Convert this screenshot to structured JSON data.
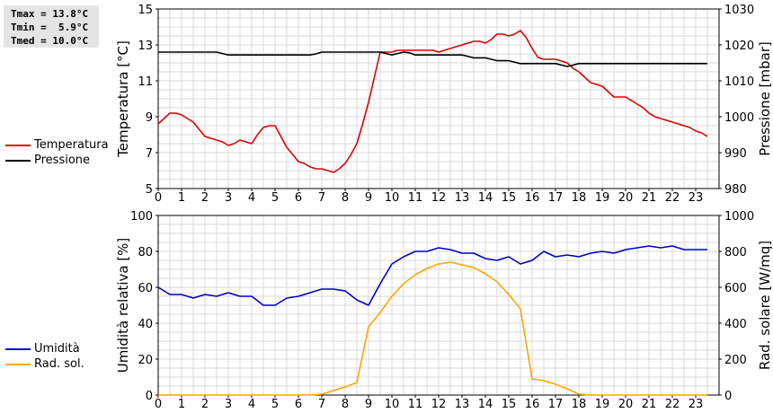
{
  "stats": {
    "tmax": "Tmax = 13.8°C",
    "tmin": "Tmin =  5.9°C",
    "tmed": "Tmed = 10.0°C"
  },
  "chart_data": [
    {
      "type": "line",
      "ylabel_left": "Temperatura [°C]",
      "ylabel_right": "Pressione [mbar]",
      "xlim": [
        0,
        24
      ],
      "xticks": [
        "0",
        "1",
        "2",
        "3",
        "4",
        "5",
        "6",
        "7",
        "8",
        "9",
        "10",
        "11",
        "12",
        "13",
        "14",
        "15",
        "16",
        "17",
        "18",
        "19",
        "20",
        "21",
        "22",
        "23"
      ],
      "ylim_left": [
        5,
        15
      ],
      "yticks_left": [
        "5",
        "7",
        "9",
        "11",
        "13",
        "15"
      ],
      "ylim_right": [
        980,
        1030
      ],
      "yticks_right": [
        "980",
        "990",
        "1000",
        "1010",
        "1020",
        "1030"
      ],
      "grid": true,
      "legend_position": "left",
      "series": [
        {
          "name": "Temperatura",
          "axis": "left",
          "color": "#dd0000",
          "x": [
            0,
            0.25,
            0.5,
            0.75,
            1,
            1.25,
            1.5,
            1.75,
            2,
            2.25,
            2.5,
            2.75,
            3,
            3.25,
            3.5,
            3.75,
            4,
            4.25,
            4.5,
            4.75,
            5,
            5.25,
            5.5,
            5.75,
            6,
            6.25,
            6.5,
            6.75,
            7,
            7.25,
            7.5,
            7.75,
            8,
            8.25,
            8.5,
            8.75,
            9,
            9.25,
            9.5,
            9.75,
            10,
            10.25,
            10.5,
            10.75,
            11,
            11.25,
            11.5,
            11.75,
            12,
            12.25,
            12.5,
            12.75,
            13,
            13.25,
            13.5,
            13.75,
            14,
            14.25,
            14.5,
            14.75,
            15,
            15.25,
            15.5,
            15.75,
            16,
            16.25,
            16.5,
            16.75,
            17,
            17.25,
            17.5,
            17.75,
            18,
            18.25,
            18.5,
            18.75,
            19,
            19.25,
            19.5,
            19.75,
            20,
            20.25,
            20.5,
            20.75,
            21,
            21.25,
            21.5,
            21.75,
            22,
            22.25,
            22.5,
            22.75,
            23,
            23.25,
            23.5
          ],
          "values": [
            8.6,
            8.9,
            9.2,
            9.2,
            9.1,
            8.9,
            8.7,
            8.3,
            7.9,
            7.8,
            7.7,
            7.6,
            7.4,
            7.5,
            7.7,
            7.6,
            7.5,
            8.0,
            8.4,
            8.5,
            8.5,
            7.9,
            7.3,
            6.9,
            6.5,
            6.4,
            6.2,
            6.1,
            6.1,
            6.0,
            5.9,
            6.1,
            6.4,
            6.9,
            7.5,
            8.6,
            9.8,
            11.2,
            12.6,
            12.6,
            12.6,
            12.7,
            12.7,
            12.7,
            12.7,
            12.7,
            12.7,
            12.7,
            12.6,
            12.7,
            12.8,
            12.9,
            13.0,
            13.1,
            13.2,
            13.2,
            13.1,
            13.3,
            13.6,
            13.6,
            13.5,
            13.6,
            13.8,
            13.4,
            12.8,
            12.3,
            12.2,
            12.2,
            12.2,
            12.1,
            12.0,
            11.7,
            11.5,
            11.2,
            10.9,
            10.8,
            10.7,
            10.4,
            10.1,
            10.1,
            10.1,
            9.9,
            9.7,
            9.5,
            9.2,
            9.0,
            8.9,
            8.8,
            8.7,
            8.6,
            8.5,
            8.4,
            8.2,
            8.1,
            7.9
          ]
        },
        {
          "name": "Pressione",
          "axis": "right",
          "color": "#000000",
          "x": [
            0,
            0.5,
            1,
            1.5,
            2,
            2.5,
            2.75,
            3,
            3.5,
            4,
            4.5,
            5,
            5.5,
            6,
            6.5,
            6.75,
            7,
            7.5,
            8,
            8.5,
            9,
            9.5,
            9.75,
            10,
            10.25,
            10.5,
            10.75,
            11,
            11.5,
            12,
            12.5,
            13,
            13.5,
            14,
            14.5,
            15,
            15.5,
            16,
            16.5,
            17,
            17.5,
            18,
            18.5,
            19,
            19.5,
            20,
            20.5,
            21,
            21.5,
            22,
            22.5,
            23,
            23.5
          ],
          "values": [
            1018.0,
            1018.0,
            1018.0,
            1018.0,
            1018.0,
            1018.0,
            1017.6,
            1017.2,
            1017.2,
            1017.2,
            1017.2,
            1017.2,
            1017.2,
            1017.2,
            1017.2,
            1017.5,
            1018.0,
            1018.0,
            1018.0,
            1018.0,
            1018.0,
            1018.0,
            1017.6,
            1017.2,
            1017.6,
            1018.0,
            1017.8,
            1017.2,
            1017.2,
            1017.2,
            1017.2,
            1017.2,
            1016.4,
            1016.4,
            1015.6,
            1015.6,
            1014.8,
            1014.8,
            1014.8,
            1014.8,
            1014.0,
            1014.8,
            1014.8,
            1014.8,
            1014.8,
            1014.8,
            1014.8,
            1014.8,
            1014.8,
            1014.8,
            1014.8,
            1014.8,
            1014.8
          ]
        }
      ]
    },
    {
      "type": "line",
      "ylabel_left": "Umidità relativa [%]",
      "ylabel_right": "Rad. solare [W/mq]",
      "xlim": [
        0,
        24
      ],
      "xticks": [
        "0",
        "1",
        "2",
        "3",
        "4",
        "5",
        "6",
        "7",
        "8",
        "9",
        "10",
        "11",
        "12",
        "13",
        "14",
        "15",
        "16",
        "17",
        "18",
        "19",
        "20",
        "21",
        "22",
        "23"
      ],
      "ylim_left": [
        0,
        100
      ],
      "yticks_left": [
        "0",
        "20",
        "40",
        "60",
        "80",
        "100"
      ],
      "ylim_right": [
        0,
        1000
      ],
      "yticks_right": [
        "0",
        "200",
        "400",
        "600",
        "800",
        "1000"
      ],
      "grid": true,
      "legend_position": "left",
      "series": [
        {
          "name": "Umidità",
          "axis": "left",
          "color": "#0000cc",
          "x": [
            0,
            0.5,
            1,
            1.5,
            2,
            2.5,
            3,
            3.5,
            4,
            4.5,
            5,
            5.5,
            6,
            6.5,
            7,
            7.5,
            8,
            8.5,
            9,
            9.5,
            10,
            10.5,
            11,
            11.5,
            12,
            12.5,
            13,
            13.5,
            14,
            14.5,
            15,
            15.5,
            16,
            16.5,
            17,
            17.5,
            18,
            18.5,
            19,
            19.5,
            20,
            20.5,
            21,
            21.5,
            22,
            22.5,
            23,
            23.5
          ],
          "values": [
            60,
            56,
            56,
            54,
            56,
            55,
            57,
            55,
            55,
            50,
            50,
            54,
            55,
            57,
            59,
            59,
            58,
            53,
            50,
            62,
            73,
            77,
            80,
            80,
            82,
            81,
            79,
            79,
            76,
            75,
            77,
            73,
            75,
            80,
            77,
            78,
            77,
            79,
            80,
            79,
            81,
            82,
            83,
            82,
            83,
            81,
            81,
            81
          ]
        },
        {
          "name": "Rad. sol.",
          "axis": "right",
          "color": "#ffa500",
          "x": [
            0,
            1,
            2,
            3,
            4,
            5,
            6,
            6.5,
            7,
            7.5,
            8,
            8.5,
            9,
            9.5,
            10,
            10.5,
            11,
            11.5,
            12,
            12.5,
            13,
            13.5,
            14,
            14.5,
            15,
            15.5,
            16,
            16.5,
            17,
            17.5,
            18,
            18.5,
            19,
            20,
            21,
            22,
            23,
            23.5
          ],
          "values": [
            0,
            0,
            0,
            0,
            0,
            0,
            0,
            0,
            5,
            25,
            45,
            70,
            380,
            460,
            550,
            620,
            670,
            705,
            730,
            740,
            725,
            710,
            675,
            630,
            560,
            480,
            90,
            80,
            60,
            35,
            5,
            0,
            0,
            0,
            0,
            0,
            0,
            0
          ]
        }
      ]
    }
  ]
}
